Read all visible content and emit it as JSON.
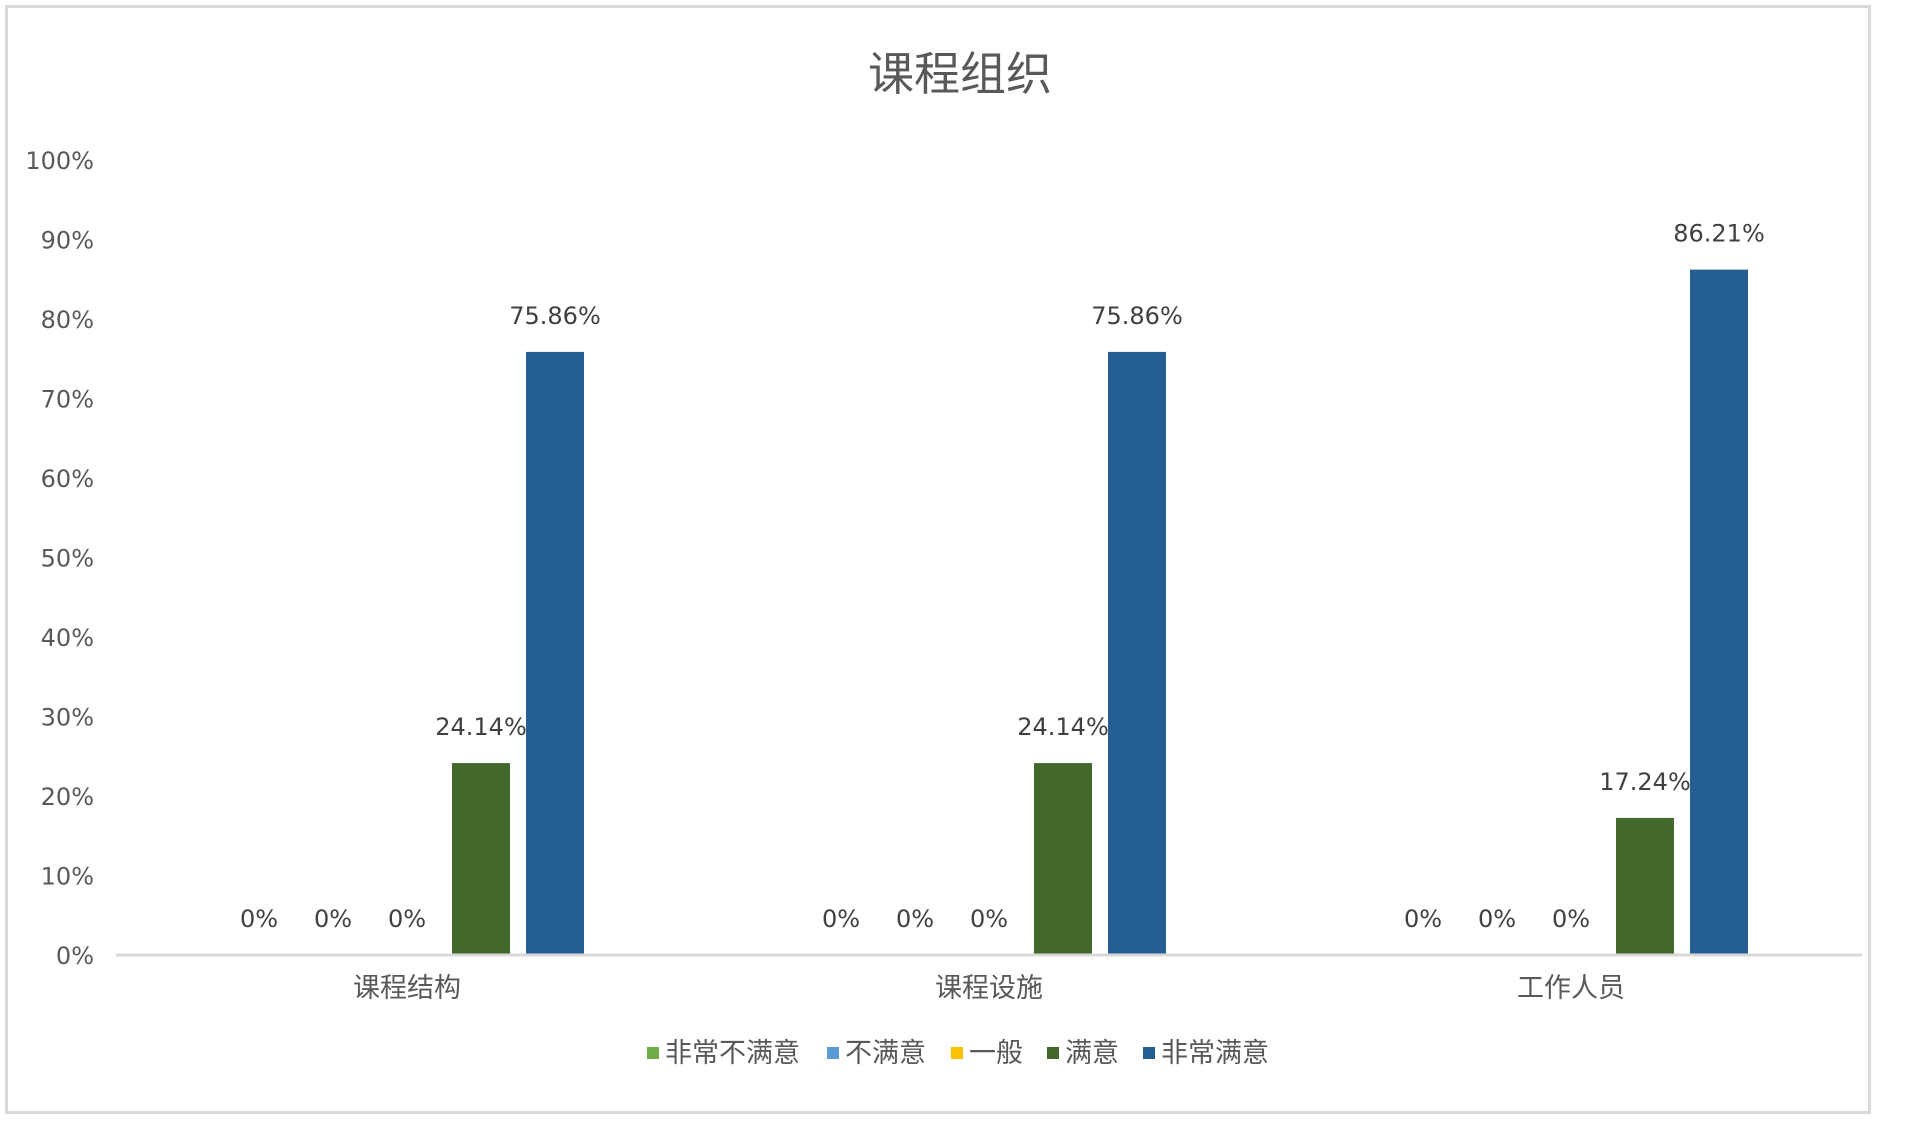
{
  "chart_data": {
    "type": "bar",
    "title": "课程组织",
    "categories": [
      "课程结构",
      "课程设施",
      "工作人员"
    ],
    "series": [
      {
        "name": "非常不满意",
        "color": "#70ad47",
        "values": [
          0,
          0,
          0
        ]
      },
      {
        "name": "不满意",
        "color": "#5b9bd5",
        "values": [
          0,
          0,
          0
        ]
      },
      {
        "name": "一般",
        "color": "#ffc000",
        "values": [
          0,
          0,
          0
        ]
      },
      {
        "name": "满意",
        "color": "#43682b",
        "values": [
          24.14,
          24.14,
          17.24
        ]
      },
      {
        "name": "非常满意",
        "color": "#255e91",
        "values": [
          75.86,
          75.86,
          86.21
        ]
      }
    ],
    "data_labels": [
      [
        "0%",
        "0%",
        "0%"
      ],
      [
        "0%",
        "0%",
        "0%"
      ],
      [
        "0%",
        "0%",
        "0%"
      ],
      [
        "24.14%",
        "24.14%",
        "17.24%"
      ],
      [
        "75.86%",
        "75.86%",
        "86.21%"
      ]
    ],
    "y_ticks": [
      "0%",
      "10%",
      "20%",
      "30%",
      "40%",
      "50%",
      "60%",
      "70%",
      "80%",
      "90%",
      "100%"
    ],
    "ylim": [
      0,
      100
    ],
    "xlabel": "",
    "ylabel": "",
    "grid": false,
    "legend_position": "bottom"
  }
}
